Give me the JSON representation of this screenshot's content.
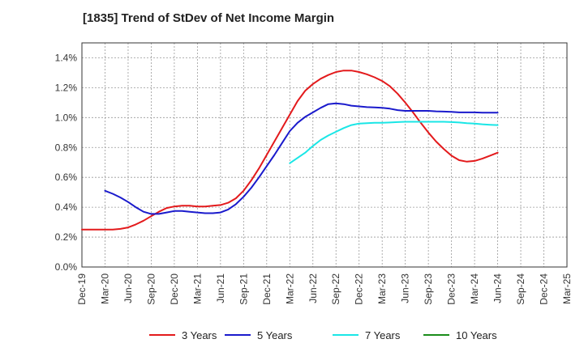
{
  "chart_data": {
    "type": "line",
    "title": "[1835]  Trend of StDev of Net Income Margin",
    "xlabel": "",
    "ylabel": "",
    "x_ticks": [
      "Dec-19",
      "Mar-20",
      "Jun-20",
      "Sep-20",
      "Dec-20",
      "Mar-21",
      "Jun-21",
      "Sep-21",
      "Dec-21",
      "Mar-22",
      "Jun-22",
      "Sep-22",
      "Dec-22",
      "Mar-23",
      "Jun-23",
      "Sep-23",
      "Dec-23",
      "Mar-24",
      "Jun-24",
      "Sep-24",
      "Dec-24",
      "Mar-25"
    ],
    "y_ticks": [
      "0.0%",
      "0.2%",
      "0.4%",
      "0.6%",
      "0.8%",
      "1.0%",
      "1.2%",
      "1.4%"
    ],
    "ylim": [
      0,
      1.5
    ],
    "y_unit": "%",
    "grid": true,
    "legend_position": "bottom",
    "series": [
      {
        "name": "3 Years",
        "color": "#e31a1c",
        "points": [
          [
            "Dec-19",
            0.25
          ],
          [
            "Jan-20",
            0.25
          ],
          [
            "Feb-20",
            0.25
          ],
          [
            "Mar-20",
            0.25
          ],
          [
            "Apr-20",
            0.25
          ],
          [
            "May-20",
            0.255
          ],
          [
            "Jun-20",
            0.265
          ],
          [
            "Jul-20",
            0.285
          ],
          [
            "Aug-20",
            0.31
          ],
          [
            "Sep-20",
            0.34
          ],
          [
            "Oct-20",
            0.37
          ],
          [
            "Nov-20",
            0.395
          ],
          [
            "Dec-20",
            0.405
          ],
          [
            "Jan-21",
            0.41
          ],
          [
            "Feb-21",
            0.41
          ],
          [
            "Mar-21",
            0.405
          ],
          [
            "Apr-21",
            0.405
          ],
          [
            "May-21",
            0.41
          ],
          [
            "Jun-21",
            0.415
          ],
          [
            "Jul-21",
            0.43
          ],
          [
            "Aug-21",
            0.46
          ],
          [
            "Sep-21",
            0.51
          ],
          [
            "Oct-21",
            0.58
          ],
          [
            "Nov-21",
            0.66
          ],
          [
            "Dec-21",
            0.75
          ],
          [
            "Jan-22",
            0.84
          ],
          [
            "Feb-22",
            0.93
          ],
          [
            "Mar-22",
            1.02
          ],
          [
            "Apr-22",
            1.11
          ],
          [
            "May-22",
            1.18
          ],
          [
            "Jun-22",
            1.225
          ],
          [
            "Jul-22",
            1.26
          ],
          [
            "Aug-22",
            1.285
          ],
          [
            "Sep-22",
            1.305
          ],
          [
            "Oct-22",
            1.315
          ],
          [
            "Nov-22",
            1.315
          ],
          [
            "Dec-22",
            1.305
          ],
          [
            "Jan-23",
            1.29
          ],
          [
            "Feb-23",
            1.27
          ],
          [
            "Mar-23",
            1.245
          ],
          [
            "Apr-23",
            1.21
          ],
          [
            "May-23",
            1.16
          ],
          [
            "Jun-23",
            1.1
          ],
          [
            "Jul-23",
            1.035
          ],
          [
            "Aug-23",
            0.965
          ],
          [
            "Sep-23",
            0.9
          ],
          [
            "Oct-23",
            0.84
          ],
          [
            "Nov-23",
            0.79
          ],
          [
            "Dec-23",
            0.745
          ],
          [
            "Jan-24",
            0.715
          ],
          [
            "Feb-24",
            0.705
          ],
          [
            "Mar-24",
            0.71
          ],
          [
            "Apr-24",
            0.725
          ],
          [
            "May-24",
            0.745
          ],
          [
            "Jun-24",
            0.765
          ]
        ]
      },
      {
        "name": "5 Years",
        "color": "#1a1acc",
        "points": [
          [
            "Mar-20",
            0.51
          ],
          [
            "Apr-20",
            0.49
          ],
          [
            "May-20",
            0.465
          ],
          [
            "Jun-20",
            0.435
          ],
          [
            "Jul-20",
            0.4
          ],
          [
            "Aug-20",
            0.37
          ],
          [
            "Sep-20",
            0.355
          ],
          [
            "Oct-20",
            0.355
          ],
          [
            "Nov-20",
            0.365
          ],
          [
            "Dec-20",
            0.375
          ],
          [
            "Jan-21",
            0.375
          ],
          [
            "Feb-21",
            0.37
          ],
          [
            "Mar-21",
            0.365
          ],
          [
            "Apr-21",
            0.36
          ],
          [
            "May-21",
            0.36
          ],
          [
            "Jun-21",
            0.365
          ],
          [
            "Jul-21",
            0.385
          ],
          [
            "Aug-21",
            0.42
          ],
          [
            "Sep-21",
            0.47
          ],
          [
            "Oct-21",
            0.53
          ],
          [
            "Nov-21",
            0.6
          ],
          [
            "Dec-21",
            0.675
          ],
          [
            "Jan-22",
            0.75
          ],
          [
            "Feb-22",
            0.83
          ],
          [
            "Mar-22",
            0.91
          ],
          [
            "Apr-22",
            0.965
          ],
          [
            "May-22",
            1.005
          ],
          [
            "Jun-22",
            1.035
          ],
          [
            "Jul-22",
            1.065
          ],
          [
            "Aug-22",
            1.09
          ],
          [
            "Sep-22",
            1.095
          ],
          [
            "Oct-22",
            1.09
          ],
          [
            "Nov-22",
            1.08
          ],
          [
            "Dec-22",
            1.075
          ],
          [
            "Jan-23",
            1.07
          ],
          [
            "Feb-23",
            1.068
          ],
          [
            "Mar-23",
            1.065
          ],
          [
            "Apr-23",
            1.06
          ],
          [
            "May-23",
            1.05
          ],
          [
            "Jun-23",
            1.045
          ],
          [
            "Jul-23",
            1.045
          ],
          [
            "Aug-23",
            1.045
          ],
          [
            "Sep-23",
            1.045
          ],
          [
            "Oct-23",
            1.042
          ],
          [
            "Nov-23",
            1.04
          ],
          [
            "Dec-23",
            1.038
          ],
          [
            "Jan-24",
            1.035
          ],
          [
            "Feb-24",
            1.035
          ],
          [
            "Mar-24",
            1.035
          ],
          [
            "Apr-24",
            1.033
          ],
          [
            "May-24",
            1.033
          ],
          [
            "Jun-24",
            1.033
          ]
        ]
      },
      {
        "name": "7 Years",
        "color": "#1ae6e6",
        "points": [
          [
            "Mar-22",
            0.695
          ],
          [
            "Apr-22",
            0.73
          ],
          [
            "May-22",
            0.765
          ],
          [
            "Jun-22",
            0.81
          ],
          [
            "Jul-22",
            0.85
          ],
          [
            "Aug-22",
            0.88
          ],
          [
            "Sep-22",
            0.905
          ],
          [
            "Oct-22",
            0.93
          ],
          [
            "Nov-22",
            0.95
          ],
          [
            "Dec-22",
            0.96
          ],
          [
            "Jan-23",
            0.963
          ],
          [
            "Feb-23",
            0.965
          ],
          [
            "Mar-23",
            0.965
          ],
          [
            "Apr-23",
            0.967
          ],
          [
            "May-23",
            0.97
          ],
          [
            "Jun-23",
            0.972
          ],
          [
            "Jul-23",
            0.972
          ],
          [
            "Aug-23",
            0.972
          ],
          [
            "Sep-23",
            0.972
          ],
          [
            "Oct-23",
            0.972
          ],
          [
            "Nov-23",
            0.972
          ],
          [
            "Dec-23",
            0.97
          ],
          [
            "Jan-24",
            0.967
          ],
          [
            "Feb-24",
            0.963
          ],
          [
            "Mar-24",
            0.96
          ],
          [
            "Apr-24",
            0.955
          ],
          [
            "May-24",
            0.952
          ],
          [
            "Jun-24",
            0.95
          ]
        ]
      },
      {
        "name": "10 Years",
        "color": "#1a8c1a",
        "points": []
      }
    ]
  }
}
